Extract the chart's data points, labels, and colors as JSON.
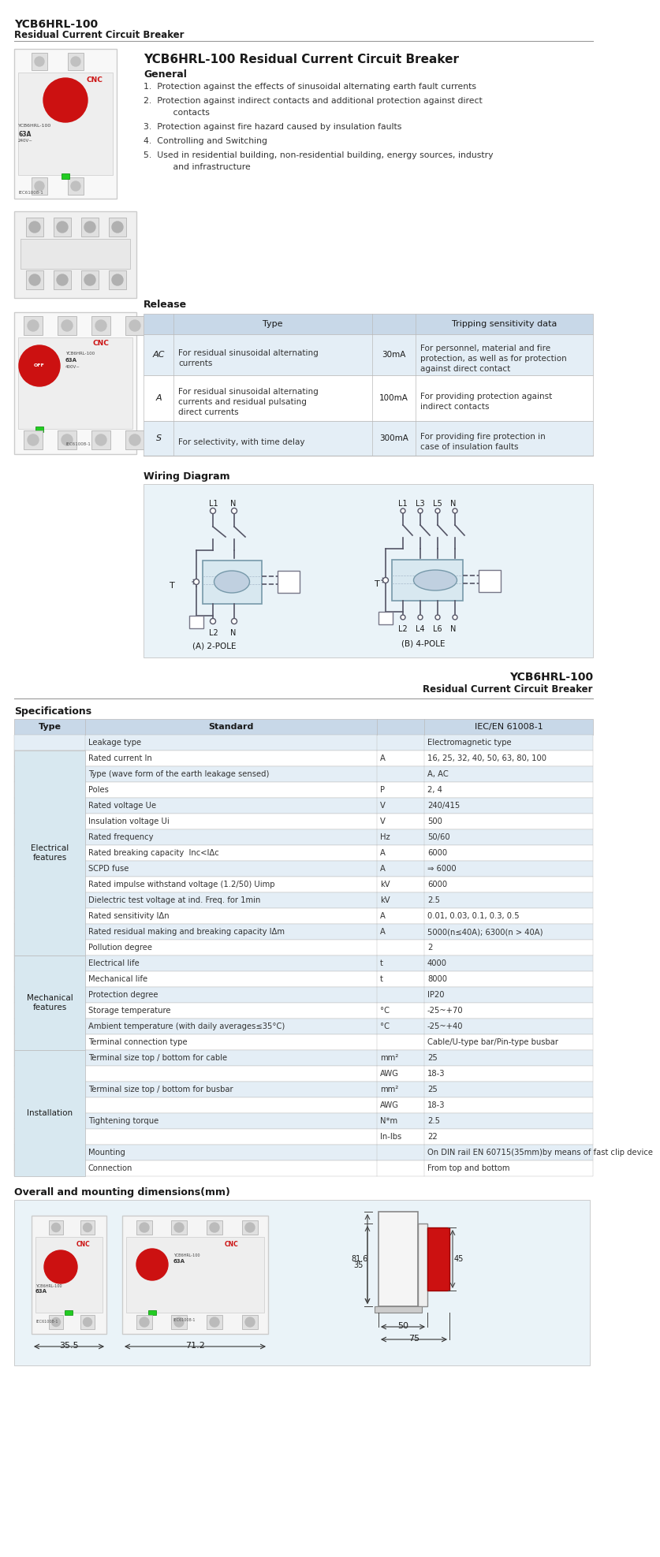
{
  "page_title_line1": "YCB6HRL-100",
  "page_title_line2": "Residual Current Circuit Breaker",
  "product_title": "YCB6HRL-100 Residual Current Circuit Breaker",
  "section_general": "General",
  "general_items": [
    "1.  Protection against the effects of sinusoidal alternating earth fault currents",
    "2.  Protection against indirect contacts and additional protection against direct\n     contacts",
    "3.  Protection against fire hazard caused by insulation faults",
    "4.  Controlling and Switching",
    "5.  Used in residential building, non-residential building, energy sources, industry\n     and infrastructure"
  ],
  "section_release": "Release",
  "release_rows": [
    [
      "AC",
      "For residual sinusoidal alternating\ncurrents",
      "30mA",
      "For personnel, material and fire\nprotection, as well as for protection\nagainst direct contact"
    ],
    [
      "A",
      "For residual sinusoidal alternating\ncurrents and residual pulsating\ndirect currents",
      "100mA",
      "For providing protection against\nindirect contacts"
    ],
    [
      "S",
      "For selectivity, with time delay",
      "300mA",
      "For providing fire protection in\ncase of insulation faults"
    ]
  ],
  "section_wiring": "Wiring Diagram",
  "wiring_2pole_label": "(A) 2-POLE",
  "wiring_4pole_label": "(B) 4-POLE",
  "product_title2_line1": "YCB6HRL-100",
  "product_title2_line2": "Residual Current Circuit Breaker",
  "section_specs": "Specifications",
  "spec_standard": "IEC/EN 61008-1",
  "rows_to_draw": [
    [
      "",
      "Leakage type",
      "",
      "Electromagnetic type"
    ],
    [
      "Electrical features",
      "Rated current In",
      "A",
      "16, 25, 32, 40, 50, 63, 80, 100"
    ],
    [
      "",
      "Type (wave form of the earth leakage sensed)",
      "",
      "A, AC"
    ],
    [
      "",
      "Poles",
      "P",
      "2, 4"
    ],
    [
      "",
      "Rated voltage Ue",
      "V",
      "240/415"
    ],
    [
      "",
      "Insulation voltage Ui",
      "V",
      "500"
    ],
    [
      "",
      "Rated frequency",
      "Hz",
      "50/60"
    ],
    [
      "",
      "Rated breaking capacity  Inc<IΔc",
      "A",
      "6000"
    ],
    [
      "",
      "SCPD fuse",
      "A",
      "⇒ 6000"
    ],
    [
      "",
      "Rated impulse withstand voltage (1.2/50) Uimp",
      "kV",
      "6000"
    ],
    [
      "",
      "Dielectric test voltage at ind. Freq. for 1min",
      "kV",
      "2.5"
    ],
    [
      "",
      "Rated sensitivity IΔn",
      "A",
      "0.01, 0.03, 0.1, 0.3, 0.5"
    ],
    [
      "",
      "Rated residual making and breaking capacity IΔm",
      "A",
      "5000(n≤40A); 6300(n > 40A)"
    ],
    [
      "",
      "Pollution degree",
      "",
      "2"
    ],
    [
      "Mechanical features",
      "Electrical life",
      "t",
      "4000"
    ],
    [
      "",
      "Mechanical life",
      "t",
      "8000"
    ],
    [
      "",
      "Protection degree",
      "",
      "IP20"
    ],
    [
      "",
      "Storage temperature",
      "°C",
      "-25~+70"
    ],
    [
      "",
      "Ambient temperature (with daily averages≤35°C)",
      "°C",
      "-25~+40"
    ],
    [
      "",
      "Terminal connection type",
      "",
      "Cable/U-type bar/Pin-type busbar"
    ],
    [
      "Installation",
      "Terminal size top / bottom for cable",
      "mm²",
      "25"
    ],
    [
      "",
      "",
      "AWG",
      "18-3"
    ],
    [
      "",
      "Terminal size top / bottom for busbar",
      "mm²",
      "25"
    ],
    [
      "",
      "",
      "AWG",
      "18-3"
    ],
    [
      "",
      "Tightening torque",
      "N*m",
      "2.5"
    ],
    [
      "",
      "",
      "In-lbs",
      "22"
    ],
    [
      "",
      "Mounting",
      "",
      "On DIN rail EN 60715(35mm)by means of fast clip device"
    ],
    [
      "",
      "Connection",
      "",
      "From top and bottom"
    ]
  ],
  "section_dimensions": "Overall and mounting dimensions(mm)",
  "bg_color": "#ffffff",
  "table_header_bg": "#c8d8e8",
  "table_alt_bg": "#e4eef6",
  "red_accent": "#cc1111",
  "text_dark": "#1a1a1a",
  "text_mid": "#333333",
  "border_color": "#bbbbbb",
  "wiring_bg": "#eaf3f8",
  "group_bg": "#d8e8f0"
}
